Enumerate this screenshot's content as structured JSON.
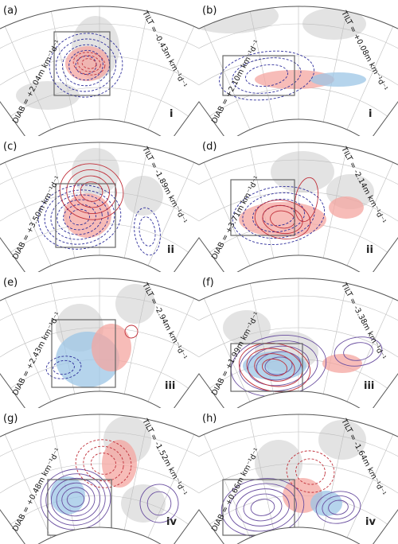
{
  "figure": {
    "panels": [
      {
        "label": "(a)",
        "roman": "i",
        "diab": "DIAB = +2.04m km⁻¹d⁻¹",
        "tilt": "TILT = -0.43m km⁻¹d⁻¹"
      },
      {
        "label": "(b)",
        "roman": "i",
        "diab": "DIAB = +2.10m km⁻¹d⁻¹",
        "tilt": "TILT = +0.08m km⁻¹d⁻¹"
      },
      {
        "label": "(c)",
        "roman": "ii",
        "diab": "DIAB = +3.50m km⁻¹d⁻¹",
        "tilt": "TILT = -1.89m km⁻¹d⁻¹"
      },
      {
        "label": "(d)",
        "roman": "ii",
        "diab": "DIAB = +3.71m km⁻¹d⁻¹",
        "tilt": "TILT = -2.14m km⁻¹d⁻¹"
      },
      {
        "label": "(e)",
        "roman": "iii",
        "diab": "DIAB = +2.43m km⁻¹d⁻¹",
        "tilt": "TILT = -2.94m km⁻¹d⁻¹"
      },
      {
        "label": "(f)",
        "roman": "iii",
        "diab": "DIAB = +1.99m km⁻¹d⁻¹",
        "tilt": "TILT = -3.38m km⁻¹d⁻¹"
      },
      {
        "label": "(g)",
        "roman": "iv",
        "diab": "DIAB = +0.48m km⁻¹d⁻¹",
        "tilt": "TILT = -1.52m km⁻¹d⁻¹"
      },
      {
        "label": "(h)",
        "roman": "iv",
        "diab": "DIAB = +0.66m km⁻¹d⁻¹",
        "tilt": "TILT = -1.64m km⁻¹d⁻¹"
      }
    ],
    "colors": {
      "frame": "#555555",
      "land": "#e3e3e3",
      "grid": "#bdbdbd",
      "box": "#666666",
      "contour_blue": "#2d2d9a",
      "contour_red": "#c0303a",
      "contour_purple": "#6a4fa0",
      "shade_red": "#f4a6a0",
      "shade_blue": "#9cc6e6"
    }
  }
}
